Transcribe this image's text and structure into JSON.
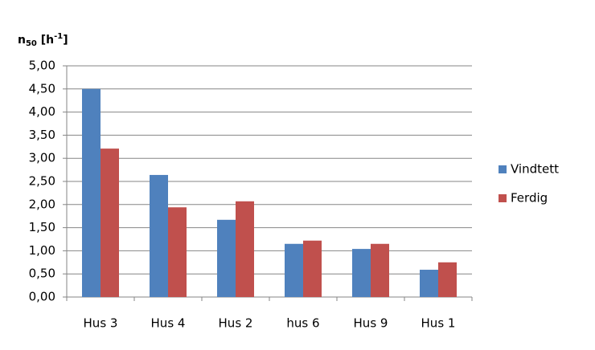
{
  "chart_data": {
    "type": "bar",
    "ylabel": [
      "n",
      "50",
      " [h",
      "-1",
      "]"
    ],
    "categories": [
      "Hus 3",
      "Hus 4",
      "Hus 2",
      "hus 6",
      "Hus 9",
      "Hus 1"
    ],
    "series": [
      {
        "name": "Vindtett",
        "color": "#4f81bd",
        "values": [
          4.5,
          2.64,
          1.67,
          1.15,
          1.04,
          0.59
        ]
      },
      {
        "name": "Ferdig",
        "color": "#c0504d",
        "values": [
          3.21,
          1.94,
          2.07,
          1.22,
          1.15,
          0.75
        ]
      }
    ],
    "ylim": [
      0,
      5
    ],
    "yticks": [
      {
        "value": 0,
        "label": "0,00"
      },
      {
        "value": 0.5,
        "label": "0,50"
      },
      {
        "value": 1,
        "label": "1,00"
      },
      {
        "value": 1.5,
        "label": "1,50"
      },
      {
        "value": 2,
        "label": "2,00"
      },
      {
        "value": 2.5,
        "label": "2,50"
      },
      {
        "value": 3,
        "label": "3,00"
      },
      {
        "value": 3.5,
        "label": "3,50"
      },
      {
        "value": 4,
        "label": "4,00"
      },
      {
        "value": 4.5,
        "label": "4,50"
      },
      {
        "value": 5,
        "label": "5,00"
      }
    ],
    "grid": true,
    "legend": "right"
  }
}
